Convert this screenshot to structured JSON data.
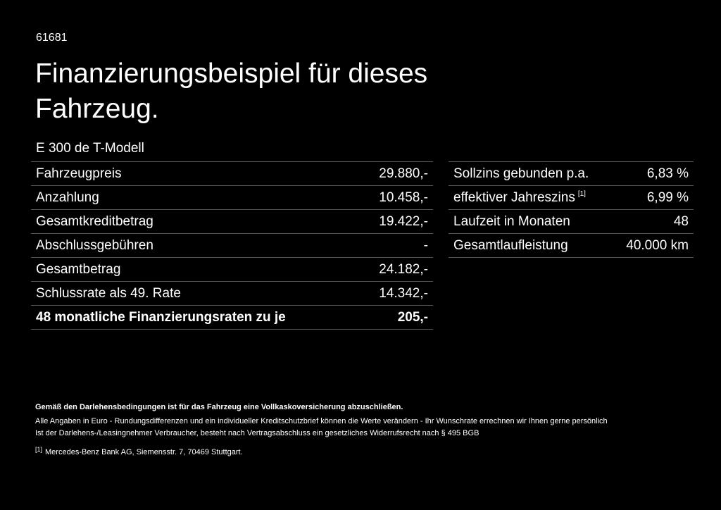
{
  "header": {
    "code": "61681",
    "title_line1": "Finanzierungsbeispiel für dieses",
    "title_line2": "Fahrzeug.",
    "model": "E 300 de T-Modell"
  },
  "left_table": {
    "rows": [
      {
        "label": "Fahrzeugpreis",
        "value": "29.880,-"
      },
      {
        "label": "Anzahlung",
        "value": "10.458,-"
      },
      {
        "label": "Gesamtkreditbetrag",
        "value": "19.422,-"
      },
      {
        "label": "Abschlussgebühren",
        "value": "-"
      },
      {
        "label": "Gesamtbetrag",
        "value": "24.182,-"
      },
      {
        "label": "Schlussrate als 49. Rate",
        "value": "14.342,-"
      },
      {
        "label": "48 monatliche Finanzierungsraten zu je",
        "value": "205,-"
      }
    ]
  },
  "right_table": {
    "rows": [
      {
        "label": "Sollzins gebunden p.a.",
        "value": "6,83 %"
      },
      {
        "label": "effektiver Jahreszins",
        "note": "[1]",
        "value": "6,99 %"
      },
      {
        "label": "Laufzeit in Monaten",
        "value": "48"
      },
      {
        "label": "Gesamtlaufleistung",
        "value": "40.000 km"
      }
    ]
  },
  "footer": {
    "bold_note": "Gemäß den Darlehensbedingungen ist für das Fahrzeug eine Vollkaskoversicherung abzuschließen.",
    "line1": "Alle Angaben in Euro - Rundungsdifferenzen und ein individueller Kreditschutzbrief können die Werte verändern - Ihr Wunschrate errechnen wir Ihnen gerne persönlich",
    "line2": "Ist der Darlehens-/Leasingnehmer Verbraucher, besteht nach Vertragsabschluss ein gesetzliches Widerrufsrecht nach § 495 BGB",
    "footnote_mark": "[1]",
    "footnote_text": "Mercedes-Benz Bank AG, Siemensstr. 7, 70469 Stuttgart."
  }
}
